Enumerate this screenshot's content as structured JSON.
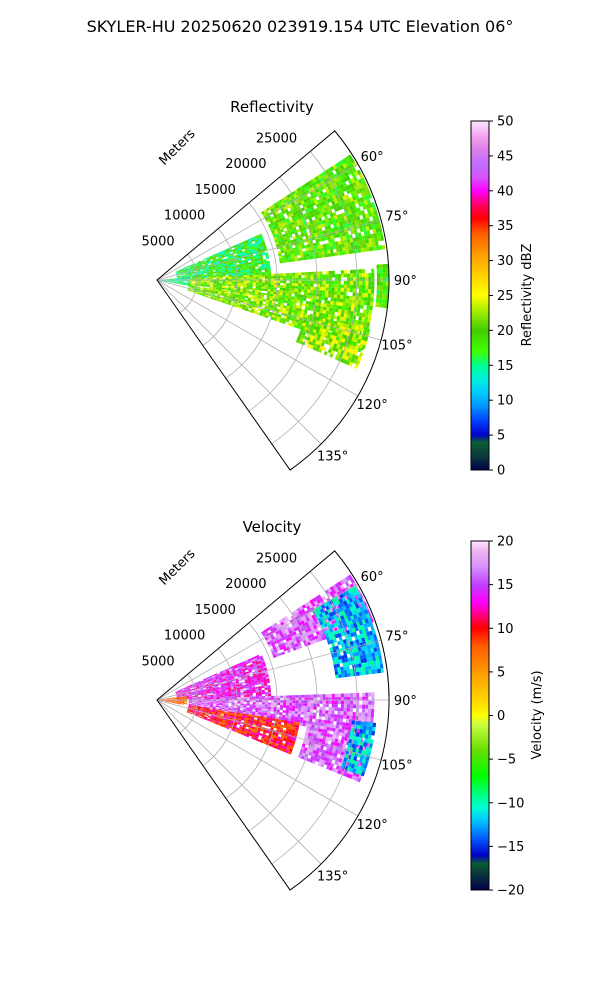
{
  "figure": {
    "suptitle": "SKYLER-HU  20250620  023919.154 UTC Elevation 06°"
  },
  "colors": {
    "grid": "#b0b0b0",
    "axis": "#000000",
    "background": "#ffffff"
  },
  "chart_data": [
    {
      "type": "heatmap",
      "subtype": "polar-sector (PPI)",
      "title": "Reflectivity",
      "radial_label": "Meters",
      "radial_ticks": [
        "5000",
        "10000",
        "15000",
        "20000",
        "25000"
      ],
      "radial_range_m": [
        0,
        29000
      ],
      "azimuth_range_deg": [
        50,
        145
      ],
      "azimuth_ticks": [
        "60°",
        "75°",
        "90°",
        "105°",
        "120°",
        "135°"
      ],
      "grid": true,
      "colorbar": {
        "label": "Reflectivity dBZ",
        "range": [
          0,
          50
        ],
        "ticks": [
          "0",
          "5",
          "10",
          "15",
          "20",
          "25",
          "30",
          "35",
          "40",
          "45",
          "50"
        ],
        "stops": [
          {
            "v": 0,
            "c": "#00004c"
          },
          {
            "v": 2,
            "c": "#0a3a3a"
          },
          {
            "v": 4,
            "c": "#0b5e32"
          },
          {
            "v": 5,
            "c": "#0000c8"
          },
          {
            "v": 7,
            "c": "#0040ff"
          },
          {
            "v": 9,
            "c": "#0090ff"
          },
          {
            "v": 11,
            "c": "#00c8ff"
          },
          {
            "v": 13,
            "c": "#00f0e0"
          },
          {
            "v": 15,
            "c": "#00ff90"
          },
          {
            "v": 17,
            "c": "#40ff00"
          },
          {
            "v": 20,
            "c": "#44cc00"
          },
          {
            "v": 22,
            "c": "#88e600"
          },
          {
            "v": 25,
            "c": "#ffff00"
          },
          {
            "v": 28,
            "c": "#ffd000"
          },
          {
            "v": 31,
            "c": "#ff9a00"
          },
          {
            "v": 34,
            "c": "#ff5a00"
          },
          {
            "v": 36,
            "c": "#ff0000"
          },
          {
            "v": 38,
            "c": "#ff0066"
          },
          {
            "v": 40,
            "c": "#ff00ff"
          },
          {
            "v": 42,
            "c": "#d455ff"
          },
          {
            "v": 44,
            "c": "#c070ff"
          },
          {
            "v": 46,
            "c": "#e080e8"
          },
          {
            "v": 48,
            "c": "#f3a8f3"
          },
          {
            "v": 50,
            "c": "#ffe8ff"
          }
        ]
      },
      "echo_regions": [
        {
          "az": [
            57,
            82
          ],
          "r": [
            15500,
            28500
          ],
          "value": 20
        },
        {
          "az": [
            66,
            87
          ],
          "r": [
            2500,
            14000
          ],
          "value": 17
        },
        {
          "az": [
            87,
            108
          ],
          "r": [
            4000,
            27000
          ],
          "value": 21
        },
        {
          "az": [
            103,
            113
          ],
          "r": [
            19000,
            27000
          ],
          "value": 22
        },
        {
          "az": [
            85,
            100
          ],
          "r": [
            0,
            4000
          ],
          "value": 15
        },
        {
          "az": [
            86,
            96
          ],
          "r": [
            27500,
            28800
          ],
          "value": 19
        }
      ]
    },
    {
      "type": "heatmap",
      "subtype": "polar-sector (PPI)",
      "title": "Velocity",
      "radial_label": "Meters",
      "radial_ticks": [
        "5000",
        "10000",
        "15000",
        "20000",
        "25000"
      ],
      "radial_range_m": [
        0,
        29000
      ],
      "azimuth_range_deg": [
        50,
        145
      ],
      "azimuth_ticks": [
        "60°",
        "75°",
        "90°",
        "105°",
        "120°",
        "135°"
      ],
      "grid": true,
      "colorbar": {
        "label": "Velocity (m/s)",
        "range": [
          -20,
          20
        ],
        "ticks": [
          "-20",
          "-15",
          "-10",
          "-5",
          "0",
          "5",
          "10",
          "15",
          "20"
        ],
        "stops": [
          {
            "v": -20,
            "c": "#00004c"
          },
          {
            "v": -18,
            "c": "#0a3a3a"
          },
          {
            "v": -17,
            "c": "#0b5e32"
          },
          {
            "v": -16,
            "c": "#0000c8"
          },
          {
            "v": -14,
            "c": "#0060ff"
          },
          {
            "v": -12,
            "c": "#00c8ff"
          },
          {
            "v": -10.5,
            "c": "#00ffd0"
          },
          {
            "v": -9,
            "c": "#00ff80"
          },
          {
            "v": -7,
            "c": "#00ff00"
          },
          {
            "v": -4,
            "c": "#66dd00"
          },
          {
            "v": -1,
            "c": "#ccff44"
          },
          {
            "v": 0,
            "c": "#ffff00"
          },
          {
            "v": 2,
            "c": "#ffd000"
          },
          {
            "v": 5,
            "c": "#ff9a00"
          },
          {
            "v": 8,
            "c": "#ff5a00"
          },
          {
            "v": 10,
            "c": "#ff0000"
          },
          {
            "v": 11.5,
            "c": "#ff0080"
          },
          {
            "v": 13,
            "c": "#ff00ff"
          },
          {
            "v": 15,
            "c": "#c040ff"
          },
          {
            "v": 17,
            "c": "#d890ff"
          },
          {
            "v": 19,
            "c": "#f0b8f0"
          },
          {
            "v": 20,
            "c": "#ffe8ff"
          }
        ]
      },
      "echo_regions": [
        {
          "az": [
            57,
            70
          ],
          "r": [
            15500,
            28500
          ],
          "value": 16
        },
        {
          "az": [
            60,
            82
          ],
          "r": [
            22500,
            28500
          ],
          "value": -12
        },
        {
          "az": [
            66,
            88
          ],
          "r": [
            2500,
            14000
          ],
          "value": 14
        },
        {
          "az": [
            88,
            99
          ],
          "r": [
            4000,
            27000
          ],
          "value": 16
        },
        {
          "az": [
            99,
            112
          ],
          "r": [
            4000,
            18000
          ],
          "value": 10
        },
        {
          "az": [
            100,
            112
          ],
          "r": [
            19000,
            27000
          ],
          "value": 16
        },
        {
          "az": [
            96,
            110
          ],
          "r": [
            24500,
            27500
          ],
          "value": -12
        },
        {
          "az": [
            82,
            100
          ],
          "r": [
            0,
            3500
          ],
          "value": 7
        }
      ]
    }
  ]
}
